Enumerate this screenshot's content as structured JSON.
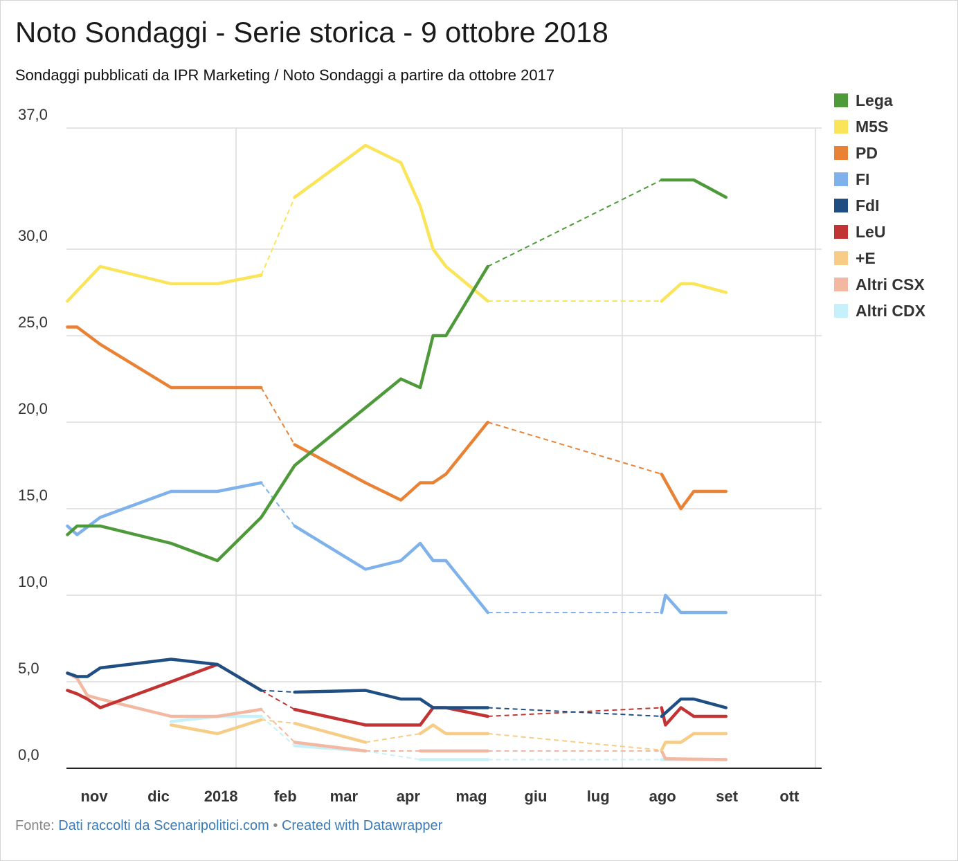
{
  "title": "Noto Sondaggi - Serie storica - 9 ottobre 2018",
  "subtitle": "Sondaggi pubblicati da IPR Marketing / Noto Sondaggi a partire da ottobre 2017",
  "footer": {
    "prefix": "Fonte: ",
    "source": "Dati raccolti da Scenaripolitici.com",
    "sep": " • ",
    "credit": "Created with Datawrapper"
  },
  "chart_data": {
    "type": "line",
    "x_unit": "month (Oct 2017 = 0)",
    "ylim": [
      0,
      37
    ],
    "y_ticks": [
      "37,0",
      "30,0",
      "25,0",
      "20,0",
      "15,0",
      "10,0",
      "5,0",
      "0,0"
    ],
    "x_ticks": [
      "nov",
      "dic",
      "2018",
      "feb",
      "mar",
      "apr",
      "mag",
      "giu",
      "lug",
      "ago",
      "set",
      "ott"
    ],
    "grid": true,
    "legend_position": "right",
    "series": [
      {
        "name": "Lega",
        "color": "#4e9a3a",
        "points": [
          [
            0.37,
            13.5
          ],
          [
            0.52,
            14
          ],
          [
            0.88,
            14
          ],
          [
            1.98,
            13
          ],
          [
            2.7,
            12
          ],
          [
            3.38,
            14.5
          ],
          [
            3.9,
            17.5
          ],
          [
            5.55,
            22.5
          ],
          [
            5.85,
            22
          ],
          [
            6.05,
            25
          ],
          [
            6.25,
            25
          ],
          [
            6.9,
            29
          ],
          [
            9.6,
            34
          ],
          [
            10.1,
            34
          ],
          [
            10.6,
            33
          ]
        ],
        "gap": [
          6.9,
          9.6
        ]
      },
      {
        "name": "M5S",
        "color": "#f9e45a",
        "points": [
          [
            0.37,
            27
          ],
          [
            0.88,
            29
          ],
          [
            1.98,
            28
          ],
          [
            2.7,
            28
          ],
          [
            3.38,
            28.5
          ],
          [
            3.9,
            33
          ],
          [
            5.0,
            36
          ],
          [
            5.55,
            35
          ],
          [
            5.85,
            32.5
          ],
          [
            6.05,
            30
          ],
          [
            6.25,
            29
          ],
          [
            6.9,
            27
          ],
          [
            9.6,
            27
          ],
          [
            9.9,
            28
          ],
          [
            10.1,
            28
          ],
          [
            10.6,
            27.5
          ]
        ],
        "gap": [
          [
            3.38,
            3.9
          ],
          [
            6.9,
            9.6
          ]
        ]
      },
      {
        "name": "PD",
        "color": "#ea8236",
        "points": [
          [
            0.37,
            25.5
          ],
          [
            0.52,
            25.5
          ],
          [
            0.88,
            24.5
          ],
          [
            1.98,
            22
          ],
          [
            2.7,
            22
          ],
          [
            3.38,
            22
          ],
          [
            3.9,
            18.7
          ],
          [
            5.0,
            16.5
          ],
          [
            5.55,
            15.5
          ],
          [
            5.85,
            16.5
          ],
          [
            6.05,
            16.5
          ],
          [
            6.25,
            17
          ],
          [
            6.9,
            20
          ],
          [
            9.6,
            17
          ],
          [
            9.9,
            15
          ],
          [
            10.1,
            16
          ],
          [
            10.6,
            16
          ]
        ],
        "gap": [
          [
            3.38,
            3.9
          ],
          [
            6.9,
            9.6
          ]
        ]
      },
      {
        "name": "FI",
        "color": "#7fb2ea",
        "points": [
          [
            0.37,
            14
          ],
          [
            0.52,
            13.5
          ],
          [
            0.88,
            14.5
          ],
          [
            1.98,
            16
          ],
          [
            2.7,
            16
          ],
          [
            3.38,
            16.5
          ],
          [
            3.9,
            14
          ],
          [
            5.0,
            11.5
          ],
          [
            5.55,
            12
          ],
          [
            5.85,
            13
          ],
          [
            6.05,
            12
          ],
          [
            6.25,
            12
          ],
          [
            6.9,
            9
          ],
          [
            9.6,
            9
          ],
          [
            9.66,
            10
          ],
          [
            9.9,
            9
          ],
          [
            10.6,
            9
          ]
        ],
        "gap": [
          [
            3.38,
            3.9
          ],
          [
            6.9,
            9.6
          ]
        ]
      },
      {
        "name": "FdI",
        "color": "#1f4e82",
        "points": [
          [
            0.37,
            5.5
          ],
          [
            0.52,
            5.3
          ],
          [
            0.68,
            5.3
          ],
          [
            0.88,
            5.8
          ],
          [
            1.98,
            6.3
          ],
          [
            2.7,
            6
          ],
          [
            3.38,
            4.5
          ],
          [
            3.9,
            4.4
          ],
          [
            5.0,
            4.5
          ],
          [
            5.55,
            4
          ],
          [
            5.85,
            4
          ],
          [
            6.05,
            3.5
          ],
          [
            6.25,
            3.5
          ],
          [
            6.9,
            3.5
          ],
          [
            9.6,
            3
          ],
          [
            9.9,
            4
          ],
          [
            10.1,
            4
          ],
          [
            10.6,
            3.5
          ]
        ],
        "gap": [
          [
            3.38,
            3.9
          ],
          [
            6.9,
            9.6
          ]
        ]
      },
      {
        "name": "LeU",
        "color": "#c23434",
        "points": [
          [
            0.37,
            4.5
          ],
          [
            0.52,
            4.3
          ],
          [
            0.68,
            4
          ],
          [
            0.88,
            3.5
          ],
          [
            1.98,
            5
          ],
          [
            2.7,
            6
          ],
          [
            3.38,
            4.5
          ],
          [
            3.9,
            3.4
          ],
          [
            5.0,
            2.5
          ],
          [
            5.55,
            2.5
          ],
          [
            5.85,
            2.5
          ],
          [
            6.05,
            3.5
          ],
          [
            6.25,
            3.5
          ],
          [
            6.9,
            3
          ],
          [
            9.6,
            3.5
          ],
          [
            9.66,
            2.5
          ],
          [
            9.9,
            3.5
          ],
          [
            10.1,
            3
          ],
          [
            10.6,
            3
          ]
        ],
        "gap": [
          [
            3.38,
            3.9
          ],
          [
            6.9,
            9.6
          ]
        ]
      },
      {
        "name": "+E",
        "color": "#f6cc86",
        "points": [
          [
            1.98,
            2.5
          ],
          [
            2.7,
            2
          ],
          [
            3.38,
            2.8
          ],
          [
            3.9,
            2.6
          ],
          [
            5.0,
            1.5
          ],
          [
            5.85,
            2
          ],
          [
            6.05,
            2.5
          ],
          [
            6.25,
            2
          ],
          [
            6.9,
            2
          ],
          [
            9.6,
            1.05
          ],
          [
            9.66,
            1.5
          ],
          [
            9.9,
            1.5
          ],
          [
            10.1,
            2
          ],
          [
            10.6,
            2
          ]
        ],
        "gap": [
          [
            3.38,
            3.9
          ],
          [
            5.0,
            5.85
          ],
          [
            6.9,
            9.6
          ]
        ]
      },
      {
        "name": "Altri CSX",
        "color": "#f2b8a2",
        "points": [
          [
            0.37,
            5.5
          ],
          [
            0.52,
            5.2
          ],
          [
            0.68,
            4.2
          ],
          [
            0.88,
            4
          ],
          [
            1.98,
            3
          ],
          [
            2.7,
            3
          ],
          [
            3.38,
            3.4
          ],
          [
            3.9,
            1.5
          ],
          [
            5.0,
            1
          ],
          [
            5.85,
            1
          ],
          [
            6.9,
            1
          ],
          [
            9.6,
            1
          ],
          [
            9.66,
            0.55
          ],
          [
            10.6,
            0.5
          ]
        ],
        "gap": [
          [
            3.38,
            3.9
          ],
          [
            5.0,
            5.85
          ],
          [
            6.9,
            9.6
          ]
        ]
      },
      {
        "name": "Altri CDX",
        "color": "#c7f1fa",
        "points": [
          [
            1.98,
            2.7
          ],
          [
            2.7,
            3
          ],
          [
            3.38,
            3
          ],
          [
            3.9,
            1.3
          ],
          [
            5.0,
            1
          ],
          [
            5.85,
            0.5
          ],
          [
            6.9,
            0.5
          ],
          [
            9.6,
            0.5
          ],
          [
            10.6,
            0.5
          ]
        ],
        "gap": [
          [
            3.38,
            3.9
          ],
          [
            5.0,
            5.85
          ],
          [
            6.9,
            9.6
          ]
        ]
      }
    ]
  }
}
